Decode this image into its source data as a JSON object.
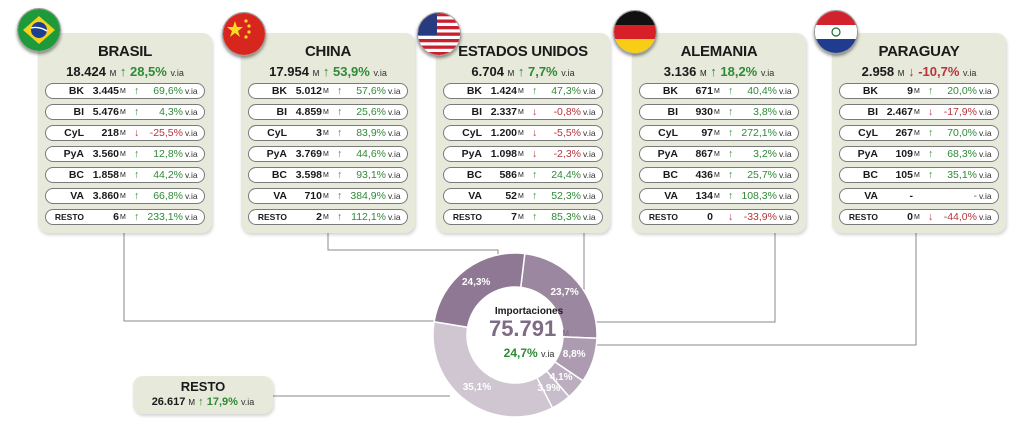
{
  "chart_data": {
    "type": "pie",
    "title": "Importaciones",
    "total": "75.791",
    "total_unit": "M",
    "total_change": "24,7%",
    "total_via": "v.ia",
    "slices": [
      {
        "label": "23,7%",
        "value": 23.7,
        "color": "#9c87a0"
      },
      {
        "label": "8,8%",
        "value": 8.8,
        "color": "#ad9cb1"
      },
      {
        "label": "4,1%",
        "value": 4.1,
        "color": "#bcaebf"
      },
      {
        "label": "3,9%",
        "value": 3.9,
        "color": "#c8bdca"
      },
      {
        "label": "35,1%",
        "value": 35.1,
        "color": "#d0c6d2"
      },
      {
        "label": "24,3%",
        "value": 24.3,
        "color": "#8e7894"
      }
    ]
  },
  "countries": [
    {
      "flag": "brazil-flag",
      "name": "BRASIL",
      "total": "18.424",
      "unit": "M",
      "arrow": "↑",
      "dir": "up",
      "pct": "28,5%",
      "via": "v.ia",
      "rows": [
        {
          "label": "BK",
          "value": "3.445",
          "unit": "M",
          "arrow": "↑",
          "dir": "up",
          "pct": "69,6%",
          "via": "v.ia"
        },
        {
          "label": "BI",
          "value": "5.476",
          "unit": "M",
          "arrow": "↑",
          "dir": "up",
          "pct": "4,3%",
          "via": "v.ia"
        },
        {
          "label": "CyL",
          "value": "218",
          "unit": "M",
          "arrow": "↓",
          "dir": "down",
          "pct": "-25,5%",
          "via": "v.ia"
        },
        {
          "label": "PyA",
          "value": "3.560",
          "unit": "M",
          "arrow": "↑",
          "dir": "up",
          "pct": "12,8%",
          "via": "v.ia"
        },
        {
          "label": "BC",
          "value": "1.858",
          "unit": "M",
          "arrow": "↑",
          "dir": "up",
          "pct": "44,2%",
          "via": "v.ia"
        },
        {
          "label": "VA",
          "value": "3.860",
          "unit": "M",
          "arrow": "↑",
          "dir": "up",
          "pct": "66,8%",
          "via": "v.ia"
        },
        {
          "label": "RESTO",
          "value": "6",
          "unit": "M",
          "arrow": "↑",
          "dir": "up",
          "pct": "233,1%",
          "via": "v.ia"
        }
      ]
    },
    {
      "flag": "china-flag",
      "name": "CHINA",
      "total": "17.954",
      "unit": "M",
      "arrow": "↑",
      "dir": "up",
      "pct": "53,9%",
      "via": "v.ia",
      "rows": [
        {
          "label": "BK",
          "value": "5.012",
          "unit": "M",
          "arrow": "↑",
          "dir": "up",
          "pct": "57,6%",
          "via": "v.ia"
        },
        {
          "label": "BI",
          "value": "4.859",
          "unit": "M",
          "arrow": "↑",
          "dir": "up",
          "pct": "25,6%",
          "via": "v.ia"
        },
        {
          "label": "CyL",
          "value": "3",
          "unit": "M",
          "arrow": "↑",
          "dir": "up",
          "pct": "83,9%",
          "via": "v.ia"
        },
        {
          "label": "PyA",
          "value": "3.769",
          "unit": "M",
          "arrow": "↑",
          "dir": "up",
          "pct": "44,6%",
          "via": "v.ia"
        },
        {
          "label": "BC",
          "value": "3.598",
          "unit": "M",
          "arrow": "↑",
          "dir": "up",
          "pct": "93,1%",
          "via": "v.ia"
        },
        {
          "label": "VA",
          "value": "710",
          "unit": "M",
          "arrow": "↑",
          "dir": "up",
          "pct": "384,9%",
          "via": "v.ia"
        },
        {
          "label": "RESTO",
          "value": "2",
          "unit": "M",
          "arrow": "↑",
          "dir": "up",
          "pct": "112,1%",
          "via": "v.ia"
        }
      ]
    },
    {
      "flag": "usa-flag",
      "name": "ESTADOS UNIDOS",
      "total": "6.704",
      "unit": "M",
      "arrow": "↑",
      "dir": "up",
      "pct": "7,7%",
      "via": "v.ia",
      "rows": [
        {
          "label": "BK",
          "value": "1.424",
          "unit": "M",
          "arrow": "↑",
          "dir": "up",
          "pct": "47,3%",
          "via": "v.ia"
        },
        {
          "label": "BI",
          "value": "2.337",
          "unit": "M",
          "arrow": "↓",
          "dir": "down",
          "pct": "-0,8%",
          "via": "v.ia"
        },
        {
          "label": "CyL",
          "value": "1.200",
          "unit": "M",
          "arrow": "↓",
          "dir": "down",
          "pct": "-5,5%",
          "via": "v.ia"
        },
        {
          "label": "PyA",
          "value": "1.098",
          "unit": "M",
          "arrow": "↓",
          "dir": "down",
          "pct": "-2,3%",
          "via": "v.ia"
        },
        {
          "label": "BC",
          "value": "586",
          "unit": "M",
          "arrow": "↑",
          "dir": "up",
          "pct": "24,4%",
          "via": "v.ia"
        },
        {
          "label": "VA",
          "value": "52",
          "unit": "M",
          "arrow": "↑",
          "dir": "up",
          "pct": "52,3%",
          "via": "v.ia"
        },
        {
          "label": "RESTO",
          "value": "7",
          "unit": "M",
          "arrow": "↑",
          "dir": "up",
          "pct": "85,3%",
          "via": "v.ia"
        }
      ]
    },
    {
      "flag": "germany-flag",
      "name": "ALEMANIA",
      "total": "3.136",
      "unit": "M",
      "arrow": "↑",
      "dir": "up",
      "pct": "18,2%",
      "via": "v.ia",
      "rows": [
        {
          "label": "BK",
          "value": "671",
          "unit": "M",
          "arrow": "↑",
          "dir": "up",
          "pct": "40,4%",
          "via": "v.ia"
        },
        {
          "label": "BI",
          "value": "930",
          "unit": "M",
          "arrow": "↑",
          "dir": "up",
          "pct": "3,8%",
          "via": "v.ia"
        },
        {
          "label": "CyL",
          "value": "97",
          "unit": "M",
          "arrow": "↑",
          "dir": "up",
          "pct": "272,1%",
          "via": "v.ia"
        },
        {
          "label": "PyA",
          "value": "867",
          "unit": "M",
          "arrow": "↑",
          "dir": "up",
          "pct": "3,2%",
          "via": "v.ia"
        },
        {
          "label": "BC",
          "value": "436",
          "unit": "M",
          "arrow": "↑",
          "dir": "up",
          "pct": "25,7%",
          "via": "v.ia"
        },
        {
          "label": "VA",
          "value": "134",
          "unit": "M",
          "arrow": "↑",
          "dir": "up",
          "pct": "108,3%",
          "via": "v.ia"
        },
        {
          "label": "RESTO",
          "value": "0",
          "unit": "",
          "arrow": "↓",
          "dir": "down",
          "pct": "-33,9%",
          "via": "v.ia"
        }
      ]
    },
    {
      "flag": "paraguay-flag",
      "name": "PARAGUAY",
      "total": "2.958",
      "unit": "M",
      "arrow": "↓",
      "dir": "down",
      "pct": "-10,7%",
      "via": "v.ia",
      "rows": [
        {
          "label": "BK",
          "value": "9",
          "unit": "M",
          "arrow": "↑",
          "dir": "up",
          "pct": "20,0%",
          "via": "v.ia"
        },
        {
          "label": "BI",
          "value": "2.467",
          "unit": "M",
          "arrow": "↓",
          "dir": "down",
          "pct": "-17,9%",
          "via": "v.ia"
        },
        {
          "label": "CyL",
          "value": "267",
          "unit": "M",
          "arrow": "↑",
          "dir": "up",
          "pct": "70,0%",
          "via": "v.ia"
        },
        {
          "label": "PyA",
          "value": "109",
          "unit": "M",
          "arrow": "↑",
          "dir": "up",
          "pct": "68,3%",
          "via": "v.ia"
        },
        {
          "label": "BC",
          "value": "105",
          "unit": "M",
          "arrow": "↑",
          "dir": "up",
          "pct": "35,1%",
          "via": "v.ia"
        },
        {
          "label": "VA",
          "value": "-",
          "unit": "",
          "arrow": "",
          "dir": "up",
          "pct": "-",
          "via": "v.ia"
        },
        {
          "label": "RESTO",
          "value": "0",
          "unit": "M",
          "arrow": "↓",
          "dir": "down",
          "pct": "-44,0%",
          "via": "v.ia"
        }
      ]
    }
  ],
  "resto": {
    "name": "RESTO",
    "total": "26.617",
    "unit": "M",
    "arrow": "↑",
    "dir": "up",
    "pct": "17,9%",
    "via": "v.ia"
  }
}
